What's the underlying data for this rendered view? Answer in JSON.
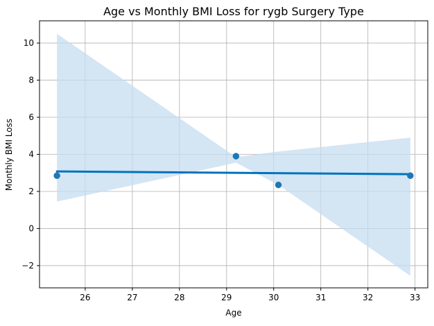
{
  "chart_data": {
    "type": "scatter",
    "title": "Age vs Monthly BMI Loss for rygb Surgery Type",
    "xlabel": "Age",
    "ylabel": "Monthly BMI Loss",
    "xlim": [
      25.03,
      33.27
    ],
    "ylim": [
      -3.2,
      11.2
    ],
    "grid": true,
    "x_ticks": [
      26,
      27,
      28,
      29,
      30,
      31,
      32,
      33
    ],
    "x_tick_labels": [
      "26",
      "27",
      "28",
      "29",
      "30",
      "31",
      "32",
      "33"
    ],
    "y_ticks": [
      -2,
      0,
      2,
      4,
      6,
      8,
      10
    ],
    "y_tick_labels": [
      "−2",
      "0",
      "2",
      "4",
      "6",
      "8",
      "10"
    ],
    "points": [
      {
        "x": 25.4,
        "y": 2.85
      },
      {
        "x": 29.2,
        "y": 3.9
      },
      {
        "x": 30.1,
        "y": 2.35
      },
      {
        "x": 32.9,
        "y": 2.85
      }
    ],
    "regression_line": {
      "x": [
        25.4,
        32.9
      ],
      "y": [
        3.08,
        2.93
      ]
    },
    "confidence_band": {
      "x": [
        25.4,
        29.2,
        30.1,
        32.9
      ],
      "upper": [
        10.5,
        3.85,
        4.15,
        4.9
      ],
      "lower": [
        1.45,
        3.55,
        2.35,
        -2.55
      ]
    },
    "colors": {
      "points": "#1f77b4",
      "line": "#0072bd",
      "band": "#c6dcf0",
      "grid": "#b0b0b0",
      "axes": "#000000"
    }
  }
}
